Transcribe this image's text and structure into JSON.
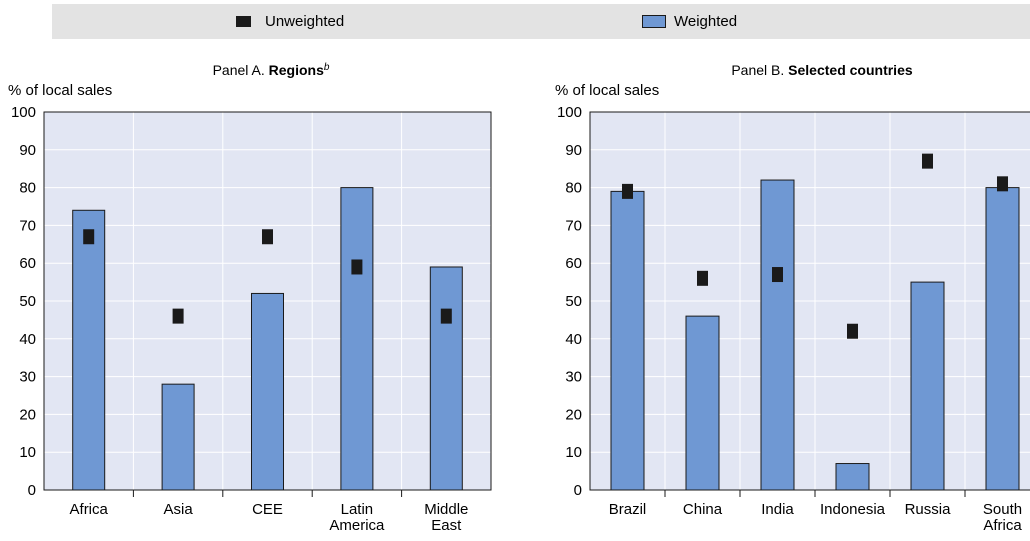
{
  "legend": {
    "unweighted_label": "Unweighted",
    "weighted_label": "Weighted",
    "colors": {
      "unweighted": "#1a1a1a",
      "weighted": "#6f98d3",
      "plot_bg": "#e2e6f3"
    }
  },
  "chart_data": [
    {
      "type": "bar",
      "title_prefix": "Panel A. ",
      "title_bold": "Regions",
      "title_sup": "b",
      "ylabel": "% of local sales",
      "ylim": [
        0,
        100
      ],
      "yticks": [
        "0",
        "10",
        "20",
        "30",
        "40",
        "50",
        "60",
        "70",
        "80",
        "90",
        "100"
      ],
      "categories": [
        [
          "Africa"
        ],
        [
          "Asia"
        ],
        [
          "CEE"
        ],
        [
          "Latin",
          "America"
        ],
        [
          "Middle",
          "East"
        ]
      ],
      "series": [
        {
          "name": "Weighted",
          "style": "bar",
          "values": [
            74,
            28,
            52,
            80,
            59
          ]
        },
        {
          "name": "Unweighted",
          "style": "marker",
          "values": [
            67,
            46,
            67,
            59,
            46
          ]
        }
      ],
      "grid": true
    },
    {
      "type": "bar",
      "title_prefix": "Panel B. ",
      "title_bold": "Selected countries",
      "title_sup": "",
      "ylabel": "% of local sales",
      "ylim": [
        0,
        100
      ],
      "yticks": [
        "0",
        "10",
        "20",
        "30",
        "40",
        "50",
        "60",
        "70",
        "80",
        "90",
        "100"
      ],
      "categories": [
        [
          "Brazil"
        ],
        [
          "China"
        ],
        [
          "India"
        ],
        [
          "Indonesia"
        ],
        [
          "Russia"
        ],
        [
          "South",
          "Africa"
        ]
      ],
      "series": [
        {
          "name": "Weighted",
          "style": "bar",
          "values": [
            79,
            46,
            82,
            7,
            55,
            80
          ]
        },
        {
          "name": "Unweighted",
          "style": "marker",
          "values": [
            79,
            56,
            57,
            42,
            87,
            81
          ]
        }
      ],
      "grid": true
    }
  ]
}
